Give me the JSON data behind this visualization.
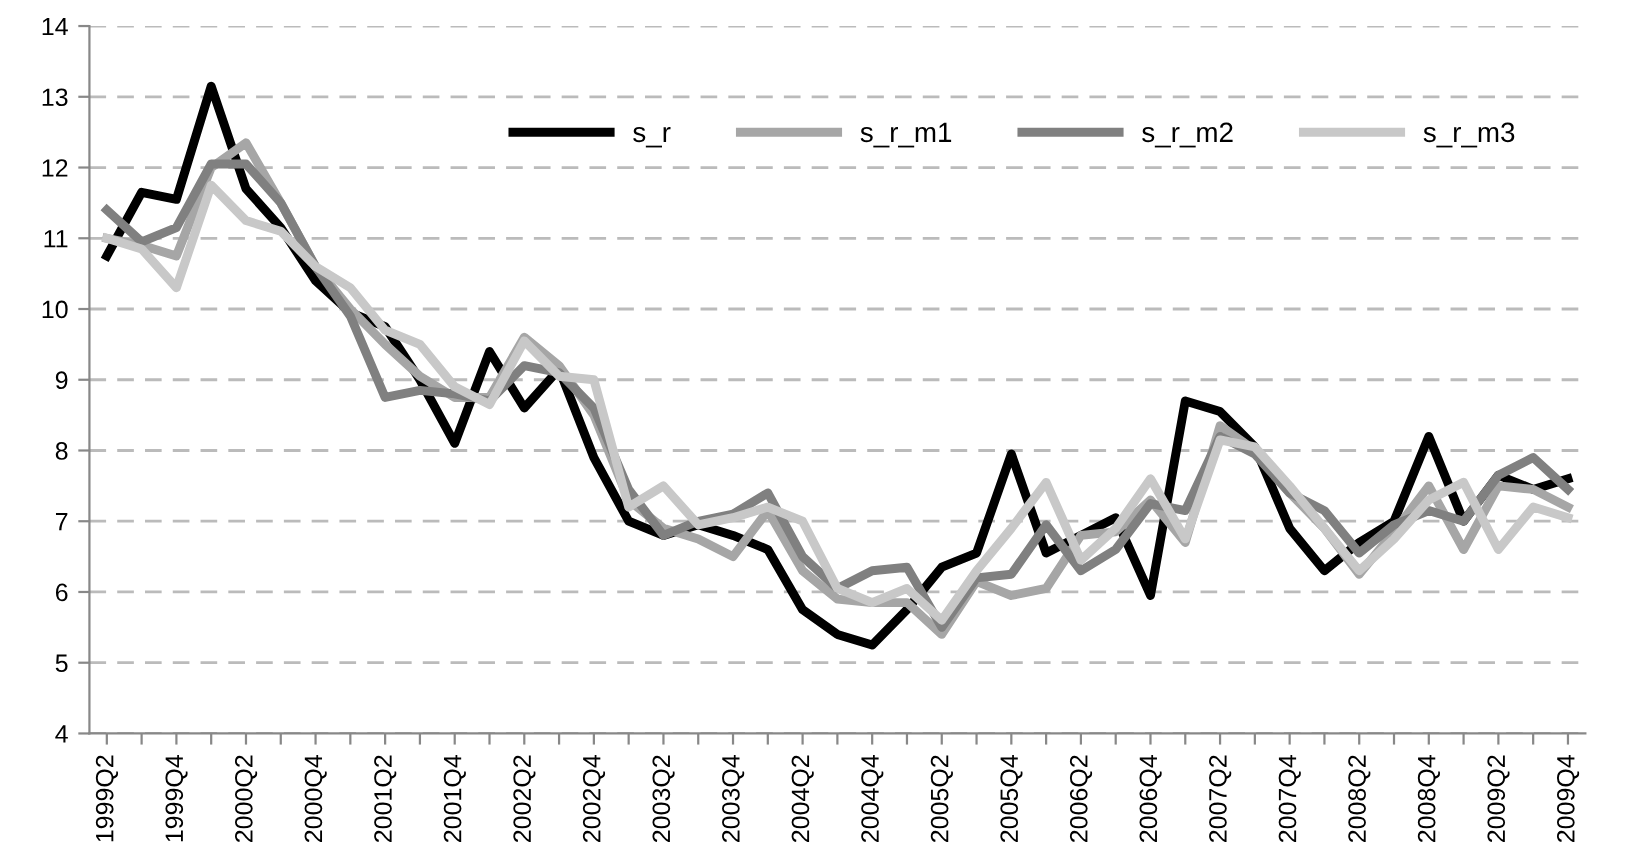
{
  "chart_data": {
    "type": "line",
    "categories": [
      "1999Q2",
      null,
      "1999Q4",
      null,
      "2000Q2",
      null,
      "2000Q4",
      null,
      "2001Q2",
      null,
      "2001Q4",
      null,
      "2002Q2",
      null,
      "2002Q4",
      null,
      "2003Q2",
      null,
      "2003Q4",
      null,
      "2004Q2",
      null,
      "2004Q4",
      null,
      "2005Q2",
      null,
      "2005Q4",
      null,
      "2006Q2",
      null,
      "2006Q4",
      null,
      "2007Q2",
      null,
      "2007Q4",
      null,
      "2008Q2",
      null,
      "2008Q4",
      null,
      "2009Q2",
      null,
      "2009Q4"
    ],
    "series": [
      {
        "name": "s_r",
        "color": "#000000",
        "values": [
          10.75,
          11.65,
          11.55,
          13.15,
          11.7,
          11.15,
          10.4,
          9.95,
          9.75,
          9.0,
          8.1,
          9.4,
          8.6,
          9.15,
          7.9,
          7.0,
          6.8,
          6.95,
          6.8,
          6.6,
          5.75,
          5.4,
          5.25,
          5.75,
          6.35,
          6.55,
          7.95,
          6.55,
          6.8,
          7.05,
          5.95,
          8.7,
          8.55,
          8.05,
          6.9,
          6.3,
          6.7,
          7.0,
          8.2,
          7.0,
          7.65,
          7.45,
          7.6
        ]
      },
      {
        "name": "s_r_m1",
        "color": "#a6a6a6",
        "values": [
          11.0,
          10.9,
          10.75,
          12.0,
          12.35,
          11.5,
          10.6,
          10.0,
          9.5,
          9.05,
          8.75,
          8.75,
          9.6,
          9.2,
          8.5,
          7.3,
          6.9,
          6.75,
          6.5,
          7.15,
          6.3,
          5.9,
          5.85,
          5.85,
          5.4,
          6.15,
          5.95,
          6.05,
          6.8,
          6.85,
          7.3,
          6.7,
          8.35,
          8.0,
          7.4,
          6.9,
          6.25,
          6.85,
          7.5,
          6.6,
          7.5,
          7.45,
          7.2
        ]
      },
      {
        "name": "s_r_m2",
        "color": "#808080",
        "values": [
          11.4,
          10.95,
          11.15,
          12.05,
          12.05,
          11.5,
          10.6,
          9.9,
          8.75,
          8.85,
          8.8,
          8.7,
          9.2,
          9.1,
          8.6,
          7.45,
          6.8,
          7.0,
          7.1,
          7.4,
          6.5,
          6.05,
          6.3,
          6.35,
          5.5,
          6.2,
          6.25,
          6.95,
          6.3,
          6.6,
          7.25,
          7.15,
          8.2,
          7.95,
          7.4,
          7.15,
          6.55,
          6.95,
          7.15,
          7.0,
          7.65,
          7.9,
          7.45
        ]
      },
      {
        "name": "s_r_m3",
        "color": "#c8c8c8",
        "values": [
          11.0,
          10.85,
          10.3,
          11.75,
          11.25,
          11.1,
          10.6,
          10.3,
          9.7,
          9.5,
          8.9,
          8.65,
          9.55,
          9.05,
          9.0,
          7.2,
          7.5,
          6.95,
          7.05,
          7.2,
          7.0,
          6.05,
          5.85,
          6.05,
          5.6,
          6.3,
          6.9,
          7.55,
          6.45,
          6.9,
          7.6,
          6.75,
          8.15,
          8.05,
          7.5,
          6.9,
          6.3,
          6.75,
          7.3,
          7.55,
          6.6,
          7.2,
          7.05
        ]
      }
    ],
    "ylim": [
      4,
      14
    ],
    "yticks": [
      4,
      5,
      6,
      7,
      8,
      9,
      10,
      11,
      12,
      13,
      14
    ],
    "grid": "y",
    "legend": "top right",
    "line_style": "solid",
    "marker": "none"
  }
}
